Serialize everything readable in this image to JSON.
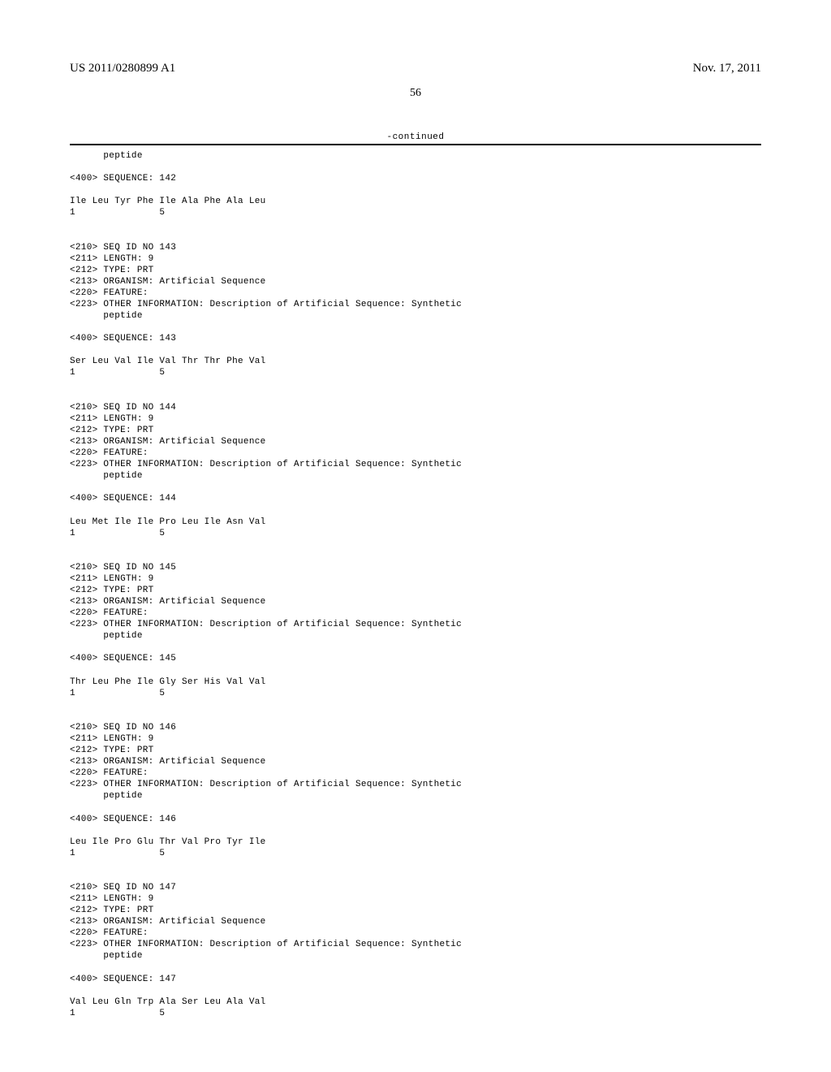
{
  "header": {
    "publication_number": "US 2011/0280899 A1",
    "date": "Nov. 17, 2011"
  },
  "page_number": "56",
  "continued_label": "-continued",
  "entries": [
    {
      "peptide_line": "      peptide",
      "seq_header": "<400> SEQUENCE: 142",
      "seq_line": "Ile Leu Tyr Phe Ile Ala Phe Ala Leu",
      "pos_line": "1               5"
    },
    {
      "block": "<210> SEQ ID NO 143\n<211> LENGTH: 9\n<212> TYPE: PRT\n<213> ORGANISM: Artificial Sequence\n<220> FEATURE:\n<223> OTHER INFORMATION: Description of Artificial Sequence: Synthetic\n      peptide",
      "seq_header": "<400> SEQUENCE: 143",
      "seq_line": "Ser Leu Val Ile Val Thr Thr Phe Val",
      "pos_line": "1               5"
    },
    {
      "block": "<210> SEQ ID NO 144\n<211> LENGTH: 9\n<212> TYPE: PRT\n<213> ORGANISM: Artificial Sequence\n<220> FEATURE:\n<223> OTHER INFORMATION: Description of Artificial Sequence: Synthetic\n      peptide",
      "seq_header": "<400> SEQUENCE: 144",
      "seq_line": "Leu Met Ile Ile Pro Leu Ile Asn Val",
      "pos_line": "1               5"
    },
    {
      "block": "<210> SEQ ID NO 145\n<211> LENGTH: 9\n<212> TYPE: PRT\n<213> ORGANISM: Artificial Sequence\n<220> FEATURE:\n<223> OTHER INFORMATION: Description of Artificial Sequence: Synthetic\n      peptide",
      "seq_header": "<400> SEQUENCE: 145",
      "seq_line": "Thr Leu Phe Ile Gly Ser His Val Val",
      "pos_line": "1               5"
    },
    {
      "block": "<210> SEQ ID NO 146\n<211> LENGTH: 9\n<212> TYPE: PRT\n<213> ORGANISM: Artificial Sequence\n<220> FEATURE:\n<223> OTHER INFORMATION: Description of Artificial Sequence: Synthetic\n      peptide",
      "seq_header": "<400> SEQUENCE: 146",
      "seq_line": "Leu Ile Pro Glu Thr Val Pro Tyr Ile",
      "pos_line": "1               5"
    },
    {
      "block": "<210> SEQ ID NO 147\n<211> LENGTH: 9\n<212> TYPE: PRT\n<213> ORGANISM: Artificial Sequence\n<220> FEATURE:\n<223> OTHER INFORMATION: Description of Artificial Sequence: Synthetic\n      peptide",
      "seq_header": "<400> SEQUENCE: 147",
      "seq_line": "Val Leu Gln Trp Ala Ser Leu Ala Val",
      "pos_line": "1               5"
    }
  ]
}
